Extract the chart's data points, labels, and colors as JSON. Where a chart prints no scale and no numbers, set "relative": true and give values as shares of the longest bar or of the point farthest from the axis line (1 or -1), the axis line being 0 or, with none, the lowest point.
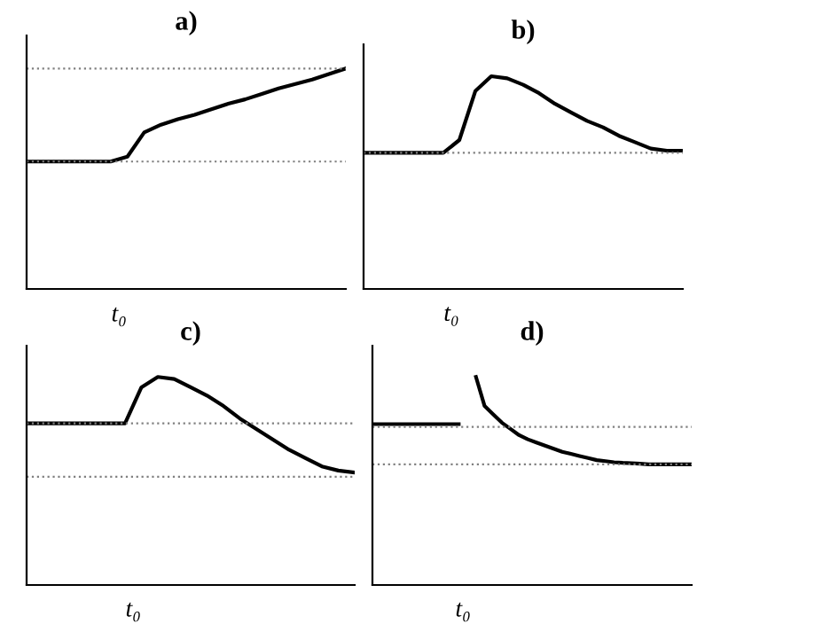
{
  "chart_data": [
    {
      "type": "line",
      "title": "a)",
      "relative": true,
      "marker": "none",
      "line_style": "solid",
      "annotations": [
        "t₀"
      ],
      "categories": [
        null,
        null,
        null,
        null,
        null,
        null,
        null,
        null,
        null,
        null,
        null,
        null,
        null,
        null,
        null,
        null,
        null,
        null,
        null,
        null
      ],
      "series": [
        {
          "color": "#000000",
          "values": [
            0.578,
            0.578,
            0.578,
            0.578,
            0.578,
            0.578,
            0.6,
            0.71,
            0.745,
            0.77,
            0.79,
            0.815,
            0.84,
            0.86,
            0.885,
            0.91,
            0.93,
            0.95,
            0.975,
            1.0
          ]
        }
      ],
      "ref_lines": [
        {
          "axis": "y",
          "value": 1.0,
          "color": "#808080",
          "line_style": "dotted"
        },
        {
          "axis": "y",
          "value": 0.578,
          "color": "#808080",
          "line_style": "dotted"
        }
      ]
    },
    {
      "type": "line",
      "title": "b)",
      "relative": true,
      "marker": "none",
      "line_style": "solid",
      "annotations": [
        "t₀"
      ],
      "categories": [
        null,
        null,
        null,
        null,
        null,
        null,
        null,
        null,
        null,
        null,
        null,
        null,
        null,
        null,
        null,
        null,
        null,
        null,
        null,
        null,
        null
      ],
      "series": [
        {
          "color": "#000000",
          "values": [
            0.64,
            0.64,
            0.64,
            0.64,
            0.64,
            0.64,
            0.7,
            0.93,
            1.0,
            0.99,
            0.96,
            0.92,
            0.87,
            0.83,
            0.79,
            0.76,
            0.72,
            0.69,
            0.66,
            0.65,
            0.65
          ]
        }
      ],
      "ref_lines": [
        {
          "axis": "y",
          "value": 0.64,
          "color": "#808080",
          "line_style": "dotted"
        }
      ]
    },
    {
      "type": "line",
      "title": "c)",
      "relative": true,
      "marker": "none",
      "line_style": "solid",
      "annotations": [
        "t₀"
      ],
      "categories": [
        null,
        null,
        null,
        null,
        null,
        null,
        null,
        null,
        null,
        null,
        null,
        null,
        null,
        null,
        null,
        null,
        null,
        null,
        null,
        null,
        null
      ],
      "series": [
        {
          "color": "#000000",
          "values": [
            0.777,
            0.777,
            0.777,
            0.777,
            0.777,
            0.777,
            0.777,
            0.95,
            1.0,
            0.99,
            0.95,
            0.91,
            0.86,
            0.8,
            0.75,
            0.7,
            0.65,
            0.61,
            0.57,
            0.55,
            0.54
          ]
        }
      ],
      "ref_lines": [
        {
          "axis": "y",
          "value": 0.777,
          "color": "#808080",
          "line_style": "dotted"
        },
        {
          "axis": "y",
          "value": 0.52,
          "color": "#808080",
          "line_style": "dotted"
        }
      ]
    },
    {
      "type": "line",
      "title": "d)",
      "relative": true,
      "marker": "none",
      "line_style": "solid",
      "annotations": [
        "t₀"
      ],
      "categories": [
        null,
        null,
        null,
        null,
        null,
        null,
        null,
        null,
        null,
        null,
        null,
        null,
        null,
        null,
        null,
        null,
        null,
        null,
        null,
        null,
        null,
        null,
        null,
        null,
        null,
        null,
        null,
        null,
        null,
        null,
        null,
        null,
        null,
        null,
        null,
        null,
        null,
        null
      ],
      "series": [
        {
          "color": "#000000",
          "values": [
            0.773,
            0.773,
            0.773,
            0.773,
            0.773,
            0.773,
            0.773,
            0.773,
            0.773,
            0.773,
            0.773,
            null,
            1.0,
            0.86,
            0.82,
            0.78,
            0.75,
            0.72,
            0.7,
            0.685,
            0.67,
            0.655,
            0.64,
            0.63,
            0.62,
            0.61,
            0.6,
            0.595,
            0.59,
            0.587,
            0.585,
            0.583,
            0.58,
            0.58,
            0.58,
            0.58,
            0.58,
            0.58
          ]
        }
      ],
      "ref_lines": [
        {
          "axis": "y",
          "value": 0.76,
          "color": "#808080",
          "line_style": "dotted"
        },
        {
          "axis": "y",
          "value": 0.58,
          "color": "#808080",
          "line_style": "dotted"
        }
      ]
    }
  ]
}
